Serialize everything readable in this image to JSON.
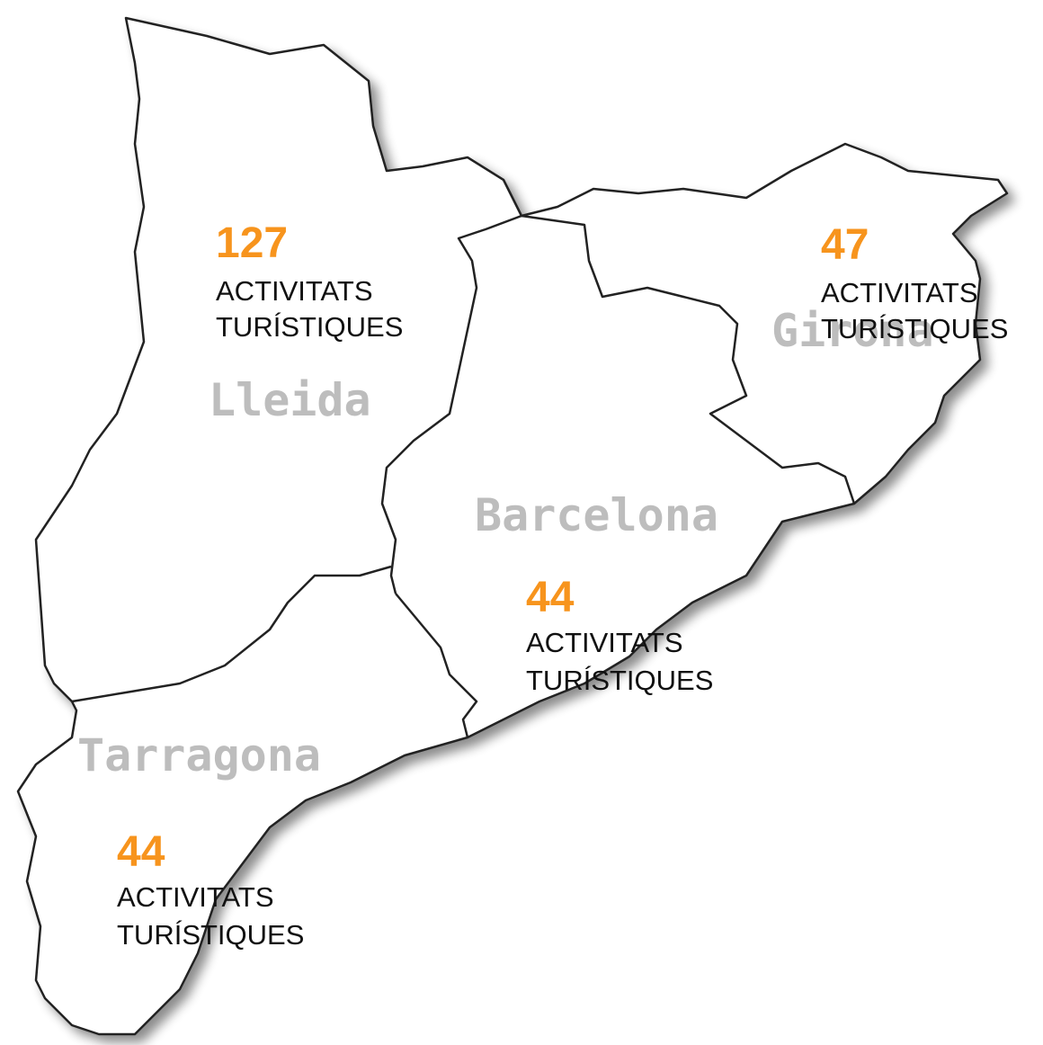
{
  "map": {
    "regions": [
      {
        "name": "Lleida",
        "count": "127",
        "label": [
          "ACTIVITATS",
          "TURÍSTIQUES"
        ]
      },
      {
        "name": "Girona",
        "count": "47",
        "label": [
          "ACTIVITATS",
          "TURÍSTIQUES"
        ]
      },
      {
        "name": "Barcelona",
        "count": "44",
        "label": [
          "ACTIVITATS",
          "TURÍSTIQUES"
        ]
      },
      {
        "name": "Tarragona",
        "count": "44",
        "label": [
          "ACTIVITATS",
          "TURÍSTIQUES"
        ]
      }
    ]
  }
}
